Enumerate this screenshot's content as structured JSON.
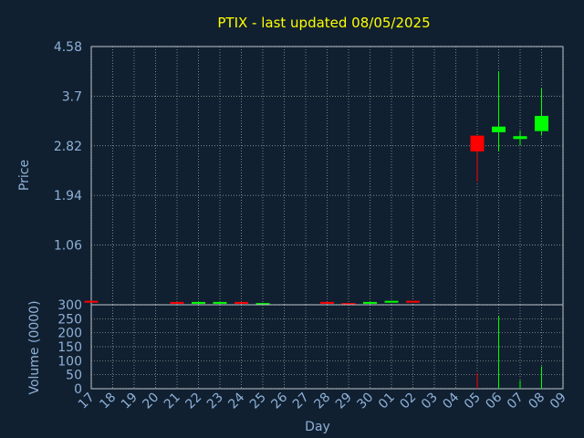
{
  "chart_data": [
    {
      "type": "candlestick",
      "title": "PTIX - last updated 08/05/2025",
      "xlabel": "Day",
      "ylabel": "Price",
      "ylim": [
        0,
        4.58
      ],
      "yticks": [
        4.58,
        3.7,
        2.82,
        1.94,
        1.06
      ],
      "x_tick_labels": [
        "17",
        "18",
        "19",
        "20",
        "21",
        "22",
        "23",
        "24",
        "25",
        "26",
        "27",
        "28",
        "29",
        "30",
        "01",
        "02",
        "03",
        "04",
        "05",
        "06",
        "07",
        "08",
        "09"
      ],
      "grid": true,
      "candles": [
        {
          "day": "17",
          "open": 0.07,
          "close": 0.05,
          "high": 0.07,
          "low": 0.05
        },
        {
          "day": "21",
          "open": 0.05,
          "close": 0.03,
          "high": 0.05,
          "low": 0.03
        },
        {
          "day": "22",
          "open": 0.03,
          "close": 0.05,
          "high": 0.05,
          "low": 0.03
        },
        {
          "day": "23",
          "open": 0.03,
          "close": 0.05,
          "high": 0.05,
          "low": 0.03
        },
        {
          "day": "24",
          "open": 0.05,
          "close": 0.03,
          "high": 0.05,
          "low": 0.03
        },
        {
          "day": "25",
          "open": 0.01,
          "close": 0.03,
          "high": 0.03,
          "low": 0.01
        },
        {
          "day": "28",
          "open": 0.05,
          "close": 0.03,
          "high": 0.05,
          "low": 0.03
        },
        {
          "day": "29",
          "open": 0.03,
          "close": 0.01,
          "high": 0.03,
          "low": 0.01
        },
        {
          "day": "30",
          "open": 0.03,
          "close": 0.05,
          "high": 0.05,
          "low": 0.03
        },
        {
          "day": "01",
          "open": 0.05,
          "close": 0.07,
          "high": 0.07,
          "low": 0.05
        },
        {
          "day": "02",
          "open": 0.07,
          "close": 0.05,
          "high": 0.07,
          "low": 0.05
        },
        {
          "day": "05",
          "open": 3.0,
          "close": 2.72,
          "high": 3.0,
          "low": 2.18
        },
        {
          "day": "06",
          "open": 3.06,
          "close": 3.16,
          "high": 4.14,
          "low": 2.72
        },
        {
          "day": "07",
          "open": 2.94,
          "close": 2.99,
          "high": 3.09,
          "low": 2.83
        },
        {
          "day": "08",
          "open": 3.08,
          "close": 3.35,
          "high": 3.84,
          "low": 3.0
        }
      ]
    },
    {
      "type": "bar",
      "xlabel": "Day",
      "ylabel": "Volume (0000)",
      "ylim": [
        0,
        300
      ],
      "yticks": [
        300,
        250,
        200,
        150,
        100,
        50,
        0
      ],
      "grid": true,
      "bars": [
        {
          "day": "05",
          "value": 55,
          "color": "#ff0000"
        },
        {
          "day": "06",
          "value": 260,
          "color": "#00ff00"
        },
        {
          "day": "07",
          "value": 30,
          "color": "#00ff00"
        },
        {
          "day": "08",
          "value": 80,
          "color": "#00ff00"
        }
      ]
    }
  ],
  "colors": {
    "background": "#102030",
    "title": "#ffff00",
    "axis_text": "#8fb0d8",
    "grid": "#aaaaaa",
    "up": "#00ff00",
    "down": "#ff0000"
  }
}
